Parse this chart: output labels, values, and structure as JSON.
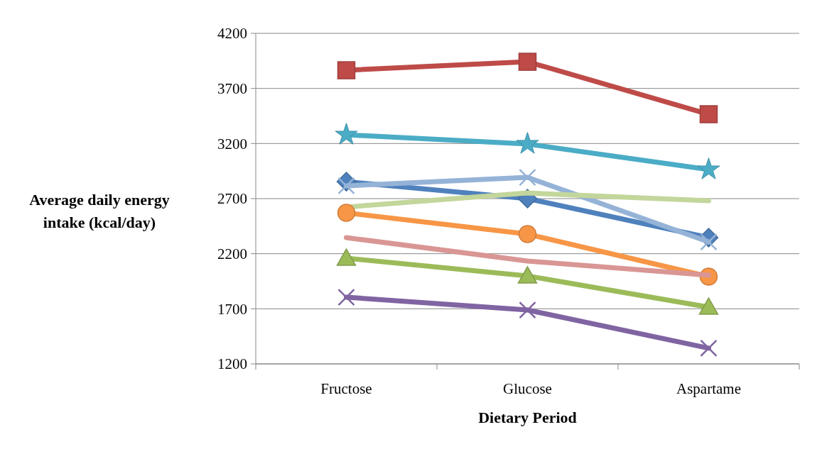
{
  "chart_data": {
    "type": "line",
    "xlabel": "Dietary Period",
    "ylabel": "Average daily energy intake (kcal/day)",
    "categories": [
      "Fructose",
      "Glucose",
      "Aspartame"
    ],
    "ylim": [
      1200,
      4200
    ],
    "yticks": [
      1200,
      1700,
      2200,
      2700,
      3200,
      3700,
      4200
    ],
    "grid": "y",
    "series": [
      {
        "color": "#be4b48",
        "marker": "square",
        "values": [
          3865,
          3942,
          3466
        ]
      },
      {
        "color": "#4bacc6",
        "marker": "star",
        "values": [
          3279,
          3196,
          2964
        ]
      },
      {
        "color": "#4f81bd",
        "marker": "diamond",
        "values": [
          2854,
          2700,
          2346
        ]
      },
      {
        "color": "#95b3d7",
        "marker": "cross",
        "values": [
          2816,
          2893,
          2307
        ]
      },
      {
        "color": "#c3d69b",
        "marker": "none",
        "values": [
          2623,
          2751,
          2681
        ]
      },
      {
        "color": "#f79646",
        "marker": "circle",
        "values": [
          2571,
          2378,
          1992
        ]
      },
      {
        "color": "#d99694",
        "marker": "none",
        "values": [
          2346,
          2133,
          2005
        ]
      },
      {
        "color": "#9bbb59",
        "marker": "triangle",
        "values": [
          2159,
          1998,
          1715
        ]
      },
      {
        "color": "#8064a2",
        "marker": "cross",
        "values": [
          1805,
          1689,
          1342
        ]
      }
    ]
  }
}
